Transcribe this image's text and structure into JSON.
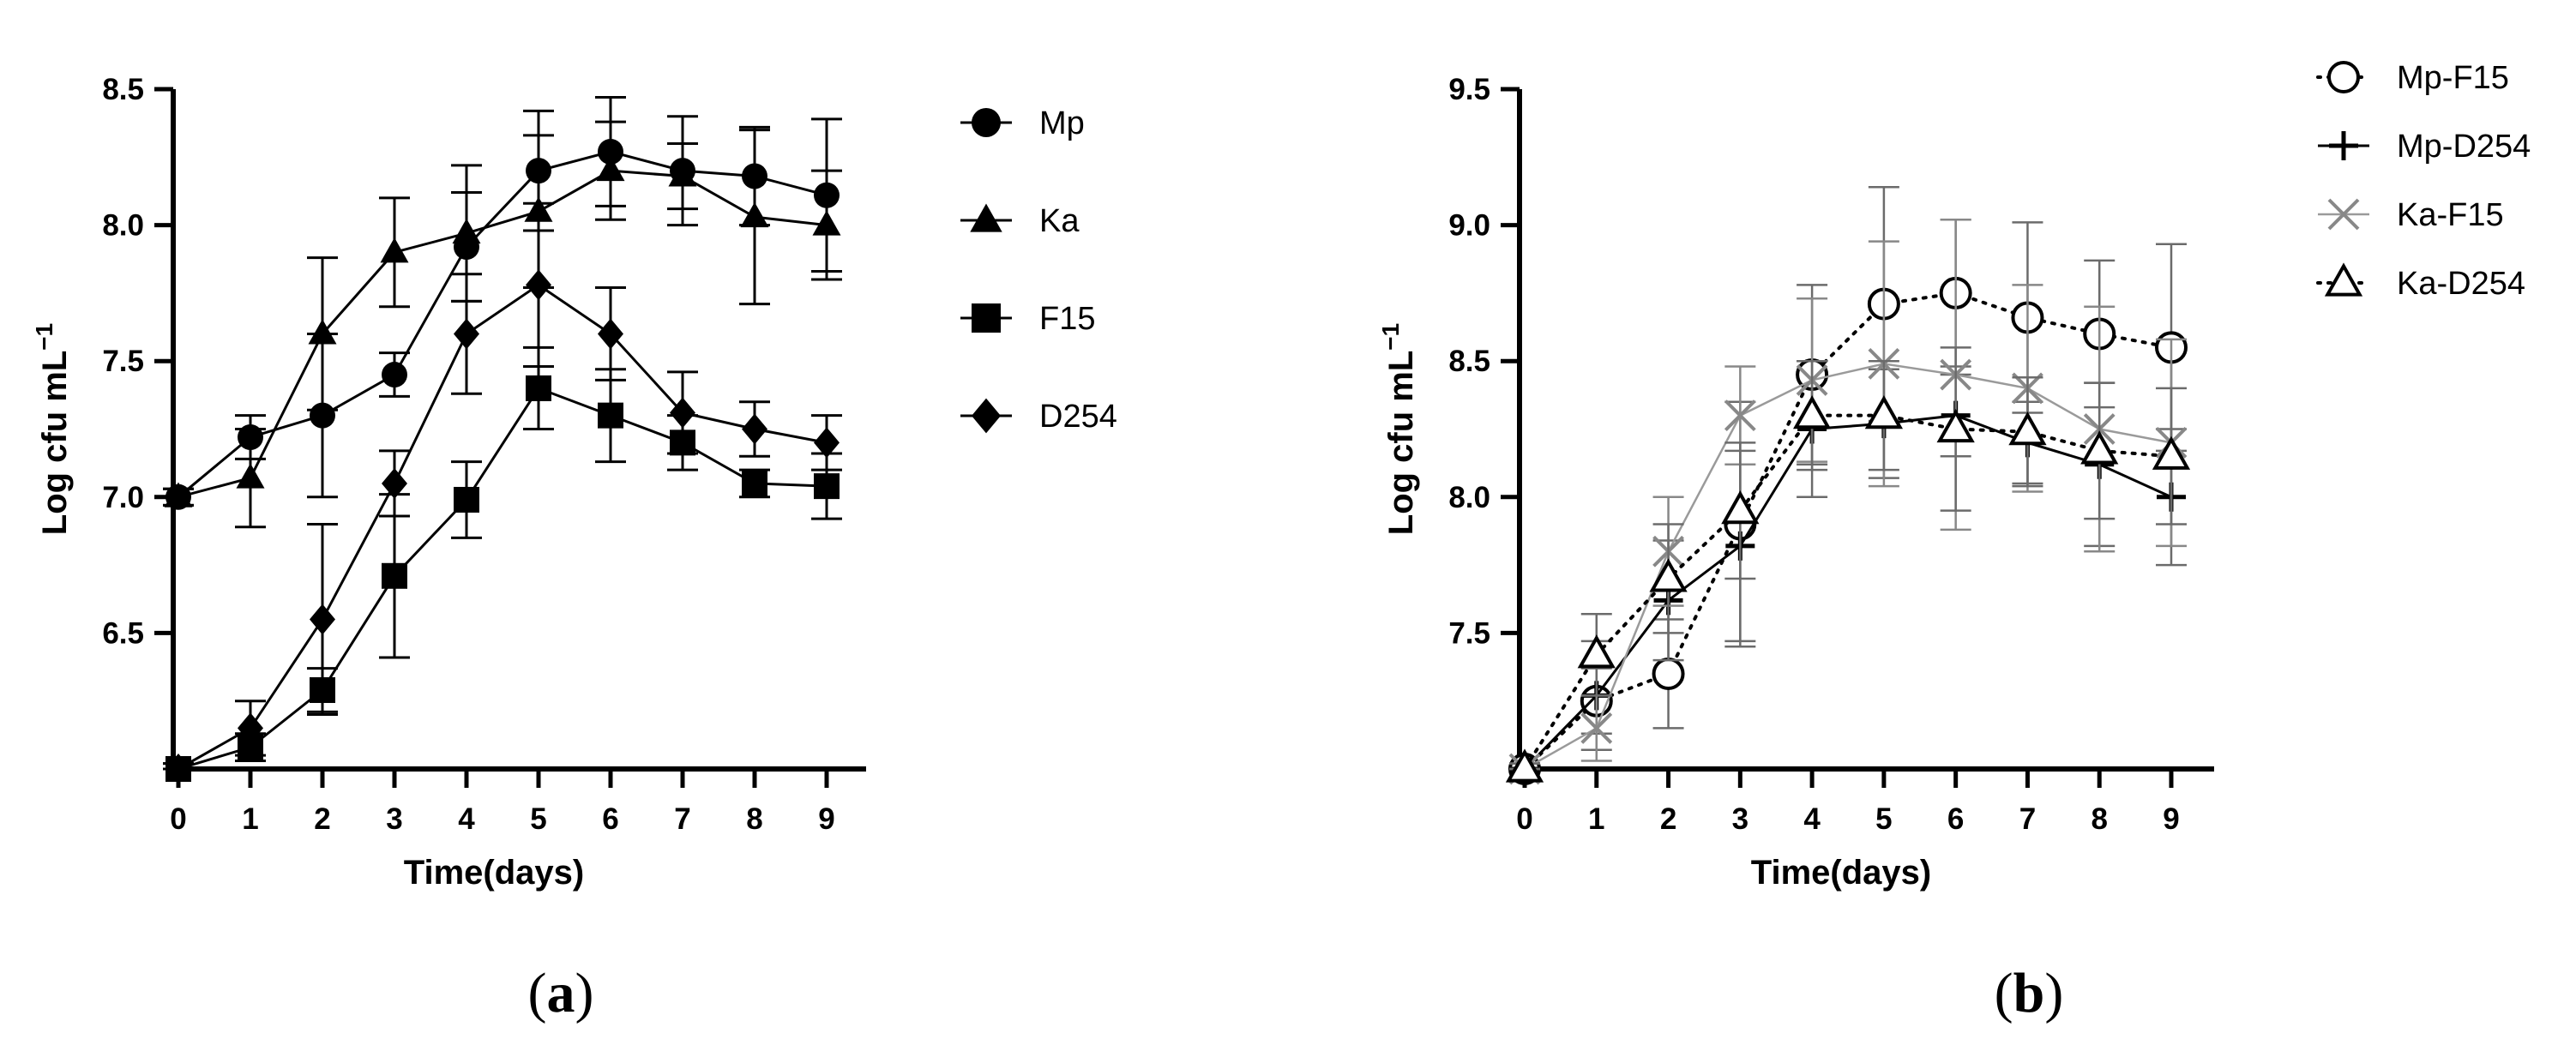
{
  "chart_data": [
    {
      "type": "line",
      "panel_label": "a",
      "xlabel": "Time(days)",
      "ylabel": "Log cfu mL",
      "ylabel_sup": "−1",
      "x": [
        0,
        1,
        2,
        3,
        4,
        5,
        6,
        7,
        8,
        9
      ],
      "xlim": [
        0,
        9
      ],
      "ylim": [
        6.0,
        8.5
      ],
      "yticks": [
        6.5,
        7.0,
        7.5,
        8.0,
        8.5
      ],
      "grid": false,
      "legend_position": "right",
      "series": [
        {
          "name": "Mp",
          "marker": "circle",
          "color": "#000000",
          "values": [
            7.0,
            7.22,
            7.3,
            7.45,
            7.92,
            8.2,
            8.27,
            8.2,
            8.18,
            8.11
          ],
          "errors": [
            0.03,
            0.08,
            0.3,
            0.08,
            0.2,
            0.22,
            0.2,
            0.2,
            0.18,
            0.28
          ]
        },
        {
          "name": "Ka",
          "marker": "triangle",
          "color": "#000000",
          "values": [
            7.0,
            7.07,
            7.6,
            7.9,
            7.97,
            8.05,
            8.2,
            8.18,
            8.03,
            8.0
          ],
          "errors": [
            0.03,
            0.18,
            0.28,
            0.2,
            0.25,
            0.28,
            0.18,
            0.12,
            0.32,
            0.2
          ]
        },
        {
          "name": "F15",
          "marker": "square",
          "color": "#000000",
          "values": [
            6.0,
            6.08,
            6.29,
            6.71,
            6.99,
            7.4,
            7.3,
            7.2,
            7.05,
            7.04
          ],
          "errors": [
            0.02,
            0.05,
            0.08,
            0.3,
            0.14,
            0.15,
            0.17,
            0.1,
            0.05,
            0.12
          ]
        },
        {
          "name": "D254",
          "marker": "diamond",
          "color": "#000000",
          "values": [
            6.0,
            6.15,
            6.55,
            7.05,
            7.6,
            7.78,
            7.6,
            7.31,
            7.25,
            7.2
          ],
          "errors": [
            0.02,
            0.1,
            0.35,
            0.12,
            0.22,
            0.3,
            0.17,
            0.15,
            0.1,
            0.1
          ]
        }
      ]
    },
    {
      "type": "line",
      "panel_label": "b",
      "xlabel": "Time(days)",
      "ylabel": "Log cfu mL",
      "ylabel_sup": "−1",
      "x": [
        0,
        1,
        2,
        3,
        4,
        5,
        6,
        7,
        8,
        9
      ],
      "xlim": [
        0,
        9
      ],
      "ylim": [
        7.0,
        9.5
      ],
      "yticks": [
        7.5,
        8.0,
        8.5,
        9.0,
        9.5
      ],
      "grid": false,
      "legend_position": "top-right",
      "series": [
        {
          "name": "Mp-F15",
          "marker": "open-circle",
          "line_style": "dotted",
          "color": "#000000",
          "values": [
            7.0,
            7.25,
            7.35,
            7.9,
            8.45,
            8.71,
            8.75,
            8.66,
            8.6,
            8.55
          ],
          "errors": [
            0.02,
            0.12,
            0.2,
            0.45,
            0.33,
            0.43,
            0.27,
            0.35,
            0.27,
            0.38
          ]
        },
        {
          "name": "Mp-D254",
          "marker": "plus",
          "line_style": "solid",
          "color": "#000000",
          "values": [
            7.0,
            7.27,
            7.62,
            7.82,
            8.25,
            8.27,
            8.3,
            8.2,
            8.12,
            8.0
          ],
          "errors": [
            0.02,
            0.2,
            0.22,
            0.35,
            0.25,
            0.2,
            0.15,
            0.15,
            0.3,
            0.25
          ]
        },
        {
          "name": "Ka-F15",
          "marker": "x",
          "line_style": "solid-thin",
          "color": "#888888",
          "values": [
            7.0,
            7.15,
            7.8,
            8.3,
            8.43,
            8.49,
            8.45,
            8.4,
            8.25,
            8.2
          ],
          "errors": [
            0.02,
            0.12,
            0.2,
            0.18,
            0.3,
            0.45,
            0.57,
            0.38,
            0.45,
            0.38
          ]
        },
        {
          "name": "Ka-D254",
          "marker": "open-triangle",
          "line_style": "dotted",
          "color": "#000000",
          "values": [
            7.0,
            7.42,
            7.7,
            7.95,
            8.3,
            8.3,
            8.25,
            8.24,
            8.17,
            8.15
          ],
          "errors": [
            0.02,
            0.15,
            0.2,
            0.25,
            0.2,
            0.2,
            0.3,
            0.2,
            0.25,
            0.25
          ]
        }
      ]
    }
  ]
}
